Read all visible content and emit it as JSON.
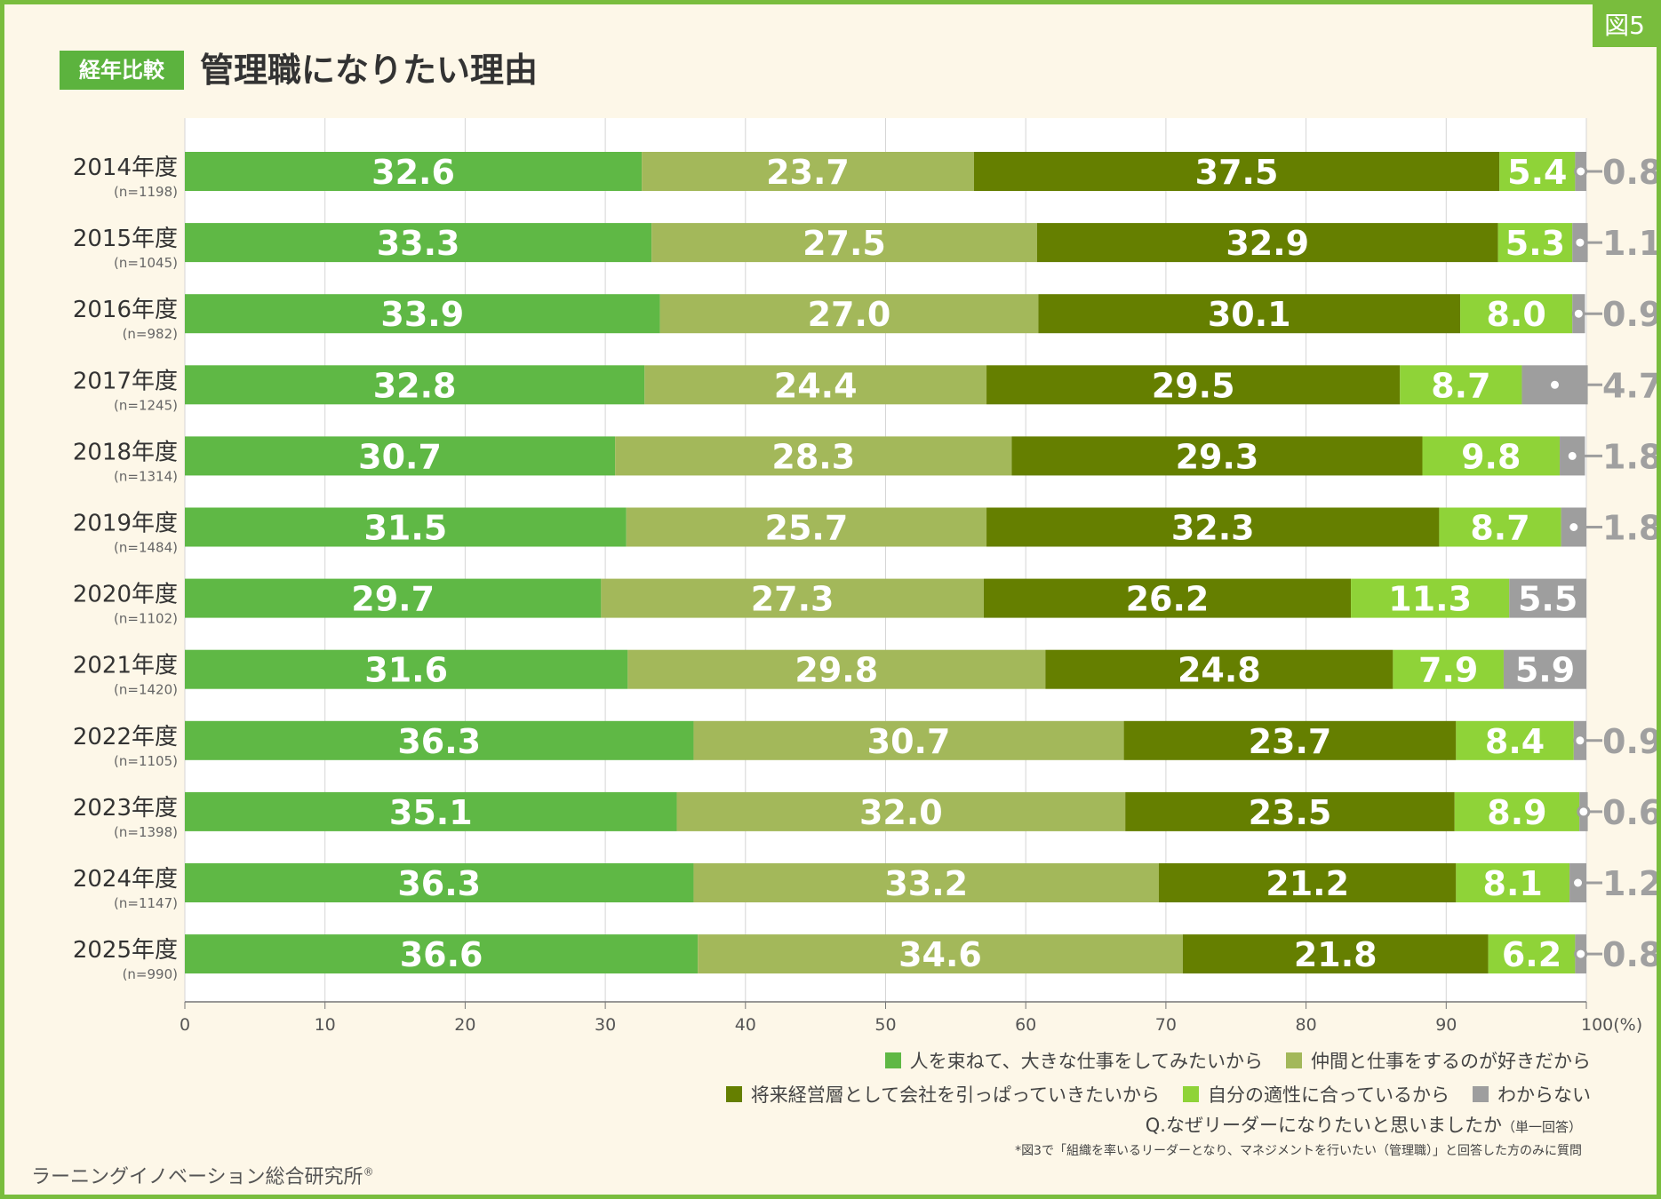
{
  "figure_label": "図5",
  "header": {
    "tag": "経年比較",
    "title": "管理職になりたい理由"
  },
  "colors": {
    "cat1": "#5fb845",
    "cat2": "#a3b85a",
    "cat3": "#657f00",
    "cat4": "#8fd338",
    "cat5": "#9e9e9e",
    "frame": "#79bd3d",
    "background": "#fdf7e8"
  },
  "chart_data": {
    "type": "bar",
    "orientation": "horizontal",
    "stacked": true,
    "categories": [
      "2014年度",
      "2015年度",
      "2016年度",
      "2017年度",
      "2018年度",
      "2019年度",
      "2020年度",
      "2021年度",
      "2022年度",
      "2023年度",
      "2024年度",
      "2025年度"
    ],
    "sample_sizes": [
      "(n=1198)",
      "(n=1045)",
      "(n=982)",
      "(n=1245)",
      "(n=1314)",
      "(n=1484)",
      "(n=1102)",
      "(n=1420)",
      "(n=1105)",
      "(n=1398)",
      "(n=1147)",
      "(n=990)"
    ],
    "series": [
      {
        "name": "人を束ねて、大きな仕事をしてみたいから",
        "values": [
          32.6,
          33.3,
          33.9,
          32.8,
          30.7,
          31.5,
          29.7,
          31.6,
          36.3,
          35.1,
          36.3,
          36.6
        ]
      },
      {
        "name": "仲間と仕事をするのが好きだから",
        "values": [
          23.7,
          27.5,
          27.0,
          24.4,
          28.3,
          25.7,
          27.3,
          29.8,
          30.7,
          32.0,
          33.2,
          34.6
        ]
      },
      {
        "name": "将来経営層として会社を引っぱっていきたいから",
        "values": [
          37.5,
          32.9,
          30.1,
          29.5,
          29.3,
          32.3,
          26.2,
          24.8,
          23.7,
          23.5,
          21.2,
          21.8
        ]
      },
      {
        "name": "自分の適性に合っているから",
        "values": [
          5.4,
          5.3,
          8.0,
          8.7,
          9.8,
          8.7,
          11.3,
          7.9,
          8.4,
          8.9,
          8.1,
          6.2
        ]
      },
      {
        "name": "わからない",
        "values": [
          0.8,
          1.1,
          0.9,
          4.7,
          1.8,
          1.8,
          5.5,
          5.9,
          0.9,
          0.6,
          1.2,
          0.8
        ]
      }
    ],
    "value_labels": {
      "s0": [
        "32.6",
        "33.3",
        "33.9",
        "32.8",
        "30.7",
        "31.5",
        "29.7",
        "31.6",
        "36.3",
        "35.1",
        "36.3",
        "36.6"
      ],
      "s1": [
        "23.7",
        "27.5",
        "27.0",
        "24.4",
        "28.3",
        "25.7",
        "27.3",
        "29.8",
        "30.7",
        "32.0",
        "33.2",
        "34.6"
      ],
      "s2": [
        "37.5",
        "32.9",
        "30.1",
        "29.5",
        "29.3",
        "32.3",
        "26.2",
        "24.8",
        "23.7",
        "23.5",
        "21.2",
        "21.8"
      ],
      "s3": [
        "5.4",
        "5.3",
        "8.0",
        "8.7",
        "9.8",
        "8.7",
        "11.3",
        "7.9",
        "8.4",
        "8.9",
        "8.1",
        "6.2"
      ],
      "s4": [
        "0.8",
        "1.1",
        "0.9",
        "4.7",
        "1.8",
        "1.8",
        "5.5",
        "5.9",
        "0.9",
        "0.6",
        "1.2",
        "0.8"
      ]
    },
    "outside_label_last_series": [
      true,
      true,
      true,
      true,
      true,
      true,
      false,
      false,
      true,
      true,
      true,
      true
    ],
    "x_ticks": [
      "0",
      "10",
      "20",
      "30",
      "40",
      "50",
      "60",
      "70",
      "80",
      "90",
      "100(%)"
    ],
    "xlim": [
      0,
      100
    ],
    "xlabel": "(%)",
    "grid": true,
    "legend_position": "bottom-right"
  },
  "question": {
    "text": "Q.なぜリーダーになりたいと思いましたか",
    "note": "（単一回答）"
  },
  "footnote": "*図3で「組織を率いるリーダーとなり、マネジメントを行いたい（管理職）」と回答した方のみに質問",
  "organization": "ラーニングイノベーション総合研究所",
  "registered_mark": "®"
}
